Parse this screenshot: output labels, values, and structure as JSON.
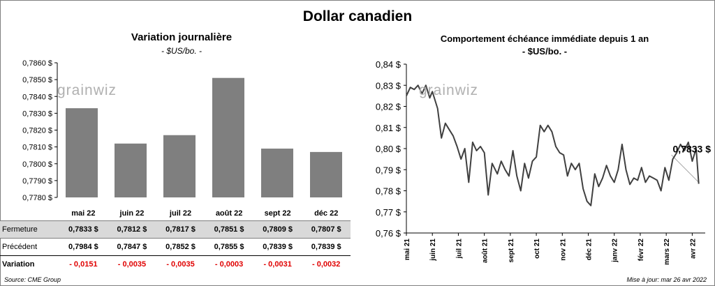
{
  "title": "Dollar canadien",
  "left_chart": {
    "title": "Variation  journalière",
    "subtitle": "- $US/bo. -"
  },
  "right_chart": {
    "title": "Comportement échéance immédiate depuis 1 an",
    "subtitle": "- $US/bo. -"
  },
  "watermark": "grainwiz",
  "table": {
    "row_labels": [
      "Fermeture",
      "Précédent",
      "Variation"
    ],
    "months": [
      "mai 22",
      "juin 22",
      "juil 22",
      "août 22",
      "sept 22",
      "déc 22"
    ],
    "fermeture": [
      "0,7833  $",
      "0,7812  $",
      "0,7817  $",
      "0,7851  $",
      "0,7809  $",
      "0,7807  $"
    ],
    "precedent": [
      "0,7984  $",
      "0,7847  $",
      "0,7852  $",
      "0,7855  $",
      "0,7839  $",
      "0,7839  $"
    ],
    "variation": [
      "- 0,0151",
      "- 0,0035",
      "- 0,0035",
      "- 0,0003",
      "- 0,0031",
      "- 0,0032"
    ]
  },
  "source": "Source: CME Group",
  "updated": "Mise à jour: mar 26 avr 2022",
  "colors": {
    "bar": "#7f7f7f",
    "line": "#404040",
    "trend": "#a6a6a6",
    "negative": "#e00000"
  },
  "chart_data": [
    {
      "type": "bar",
      "categories": [
        "mai 22",
        "juin 22",
        "juil 22",
        "août 22",
        "sept 22",
        "déc 22"
      ],
      "values": [
        0.7833,
        0.7812,
        0.7817,
        0.7851,
        0.7809,
        0.7807
      ],
      "ylim": [
        0.778,
        0.786
      ],
      "yticks": [
        "0,7780 $",
        "0,7790 $",
        "0,7800 $",
        "0,7810 $",
        "0,7820 $",
        "0,7830 $",
        "0,7840 $",
        "0,7850 $",
        "0,7860 $"
      ],
      "grid": false
    },
    {
      "type": "line",
      "xticks": [
        "mai 21",
        "juin 21",
        "juil 21",
        "août 21",
        "sept 21",
        "oct 21",
        "nov 21",
        "déc 21",
        "janv 22",
        "févr 22",
        "mars 22",
        "avr 22"
      ],
      "yticks": [
        "0,76 $",
        "0,77 $",
        "0,78 $",
        "0,79 $",
        "0,80 $",
        "0,81 $",
        "0,82 $",
        "0,83 $",
        "0,84 $"
      ],
      "ylim": [
        0.76,
        0.84
      ],
      "last_label": "0,7833 $",
      "series": [
        {
          "x": [
            0,
            0.15,
            0.3,
            0.45,
            0.6,
            0.75,
            0.9,
            1.0,
            1.2,
            1.35,
            1.5,
            1.65,
            1.8,
            1.95,
            2.1,
            2.25,
            2.4,
            2.55,
            2.7,
            2.85,
            3.0,
            3.15,
            3.3,
            3.5,
            3.65,
            3.8,
            3.95,
            4.1,
            4.25,
            4.4,
            4.55,
            4.7,
            4.85,
            5.0,
            5.15,
            5.3,
            5.45,
            5.6,
            5.75,
            5.9,
            6.05,
            6.2,
            6.35,
            6.5,
            6.65,
            6.8,
            6.95,
            7.1,
            7.25,
            7.4,
            7.55,
            7.7,
            7.85,
            8.0,
            8.15,
            8.3,
            8.45,
            8.6,
            8.75,
            8.9,
            9.05,
            9.2,
            9.35,
            9.5,
            9.65,
            9.8,
            9.95,
            10.1,
            10.25,
            10.4,
            10.55,
            10.7,
            10.85,
            11.0,
            11.15,
            11.25
          ],
          "y": [
            0.825,
            0.829,
            0.828,
            0.83,
            0.826,
            0.83,
            0.824,
            0.827,
            0.819,
            0.805,
            0.812,
            0.809,
            0.806,
            0.801,
            0.795,
            0.8,
            0.784,
            0.803,
            0.799,
            0.801,
            0.798,
            0.778,
            0.793,
            0.788,
            0.794,
            0.79,
            0.787,
            0.799,
            0.787,
            0.78,
            0.793,
            0.786,
            0.794,
            0.796,
            0.811,
            0.808,
            0.811,
            0.808,
            0.801,
            0.798,
            0.797,
            0.787,
            0.793,
            0.79,
            0.793,
            0.781,
            0.775,
            0.773,
            0.788,
            0.782,
            0.786,
            0.792,
            0.787,
            0.784,
            0.79,
            0.802,
            0.79,
            0.783,
            0.786,
            0.785,
            0.791,
            0.784,
            0.787,
            0.786,
            0.785,
            0.78,
            0.791,
            0.785,
            0.795,
            0.798,
            0.802,
            0.799,
            0.803,
            0.794,
            0.8,
            0.7833
          ]
        }
      ],
      "trend": {
        "x": [
          10.2,
          11.25
        ],
        "y": [
          0.797,
          0.784
        ]
      }
    }
  ]
}
